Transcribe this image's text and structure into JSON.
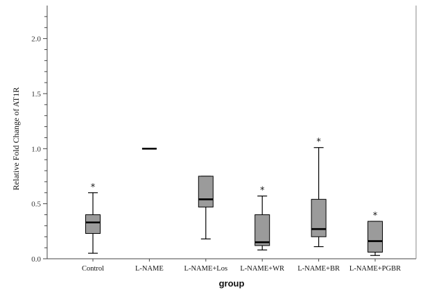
{
  "chart_data": {
    "type": "box",
    "xlabel": "group",
    "ylabel": "Relative Fold Change of AT1R",
    "ylim": [
      0,
      2.3
    ],
    "yticks": [
      "0.0",
      "0.5",
      "1.0",
      "1.5",
      "2.0"
    ],
    "ytick_values": [
      0,
      0.5,
      1.0,
      1.5,
      2.0
    ],
    "categories": [
      "Control",
      "L-NAME",
      "L-NAME+Los",
      "L-NAME+WR",
      "L-NAME+BR",
      "L-NAME+PGBR"
    ],
    "boxes": [
      {
        "min": 0.05,
        "q1": 0.23,
        "median": 0.33,
        "q3": 0.4,
        "max": 0.6,
        "significance": "*"
      },
      {
        "min": 1.0,
        "q1": 1.0,
        "median": 1.0,
        "q3": 1.0,
        "max": 1.0,
        "significance": ""
      },
      {
        "min": 0.18,
        "q1": 0.47,
        "median": 0.54,
        "q3": 0.75,
        "max": 0.75,
        "significance": ""
      },
      {
        "min": 0.08,
        "q1": 0.12,
        "median": 0.15,
        "q3": 0.4,
        "max": 0.57,
        "significance": "*"
      },
      {
        "min": 0.11,
        "q1": 0.2,
        "median": 0.27,
        "q3": 0.54,
        "max": 1.01,
        "significance": "*"
      },
      {
        "min": 0.03,
        "q1": 0.06,
        "median": 0.16,
        "q3": 0.34,
        "max": 0.34,
        "significance": "*"
      }
    ],
    "box_color": "#9b9b9b",
    "line_color": "#000000",
    "grid": false
  }
}
